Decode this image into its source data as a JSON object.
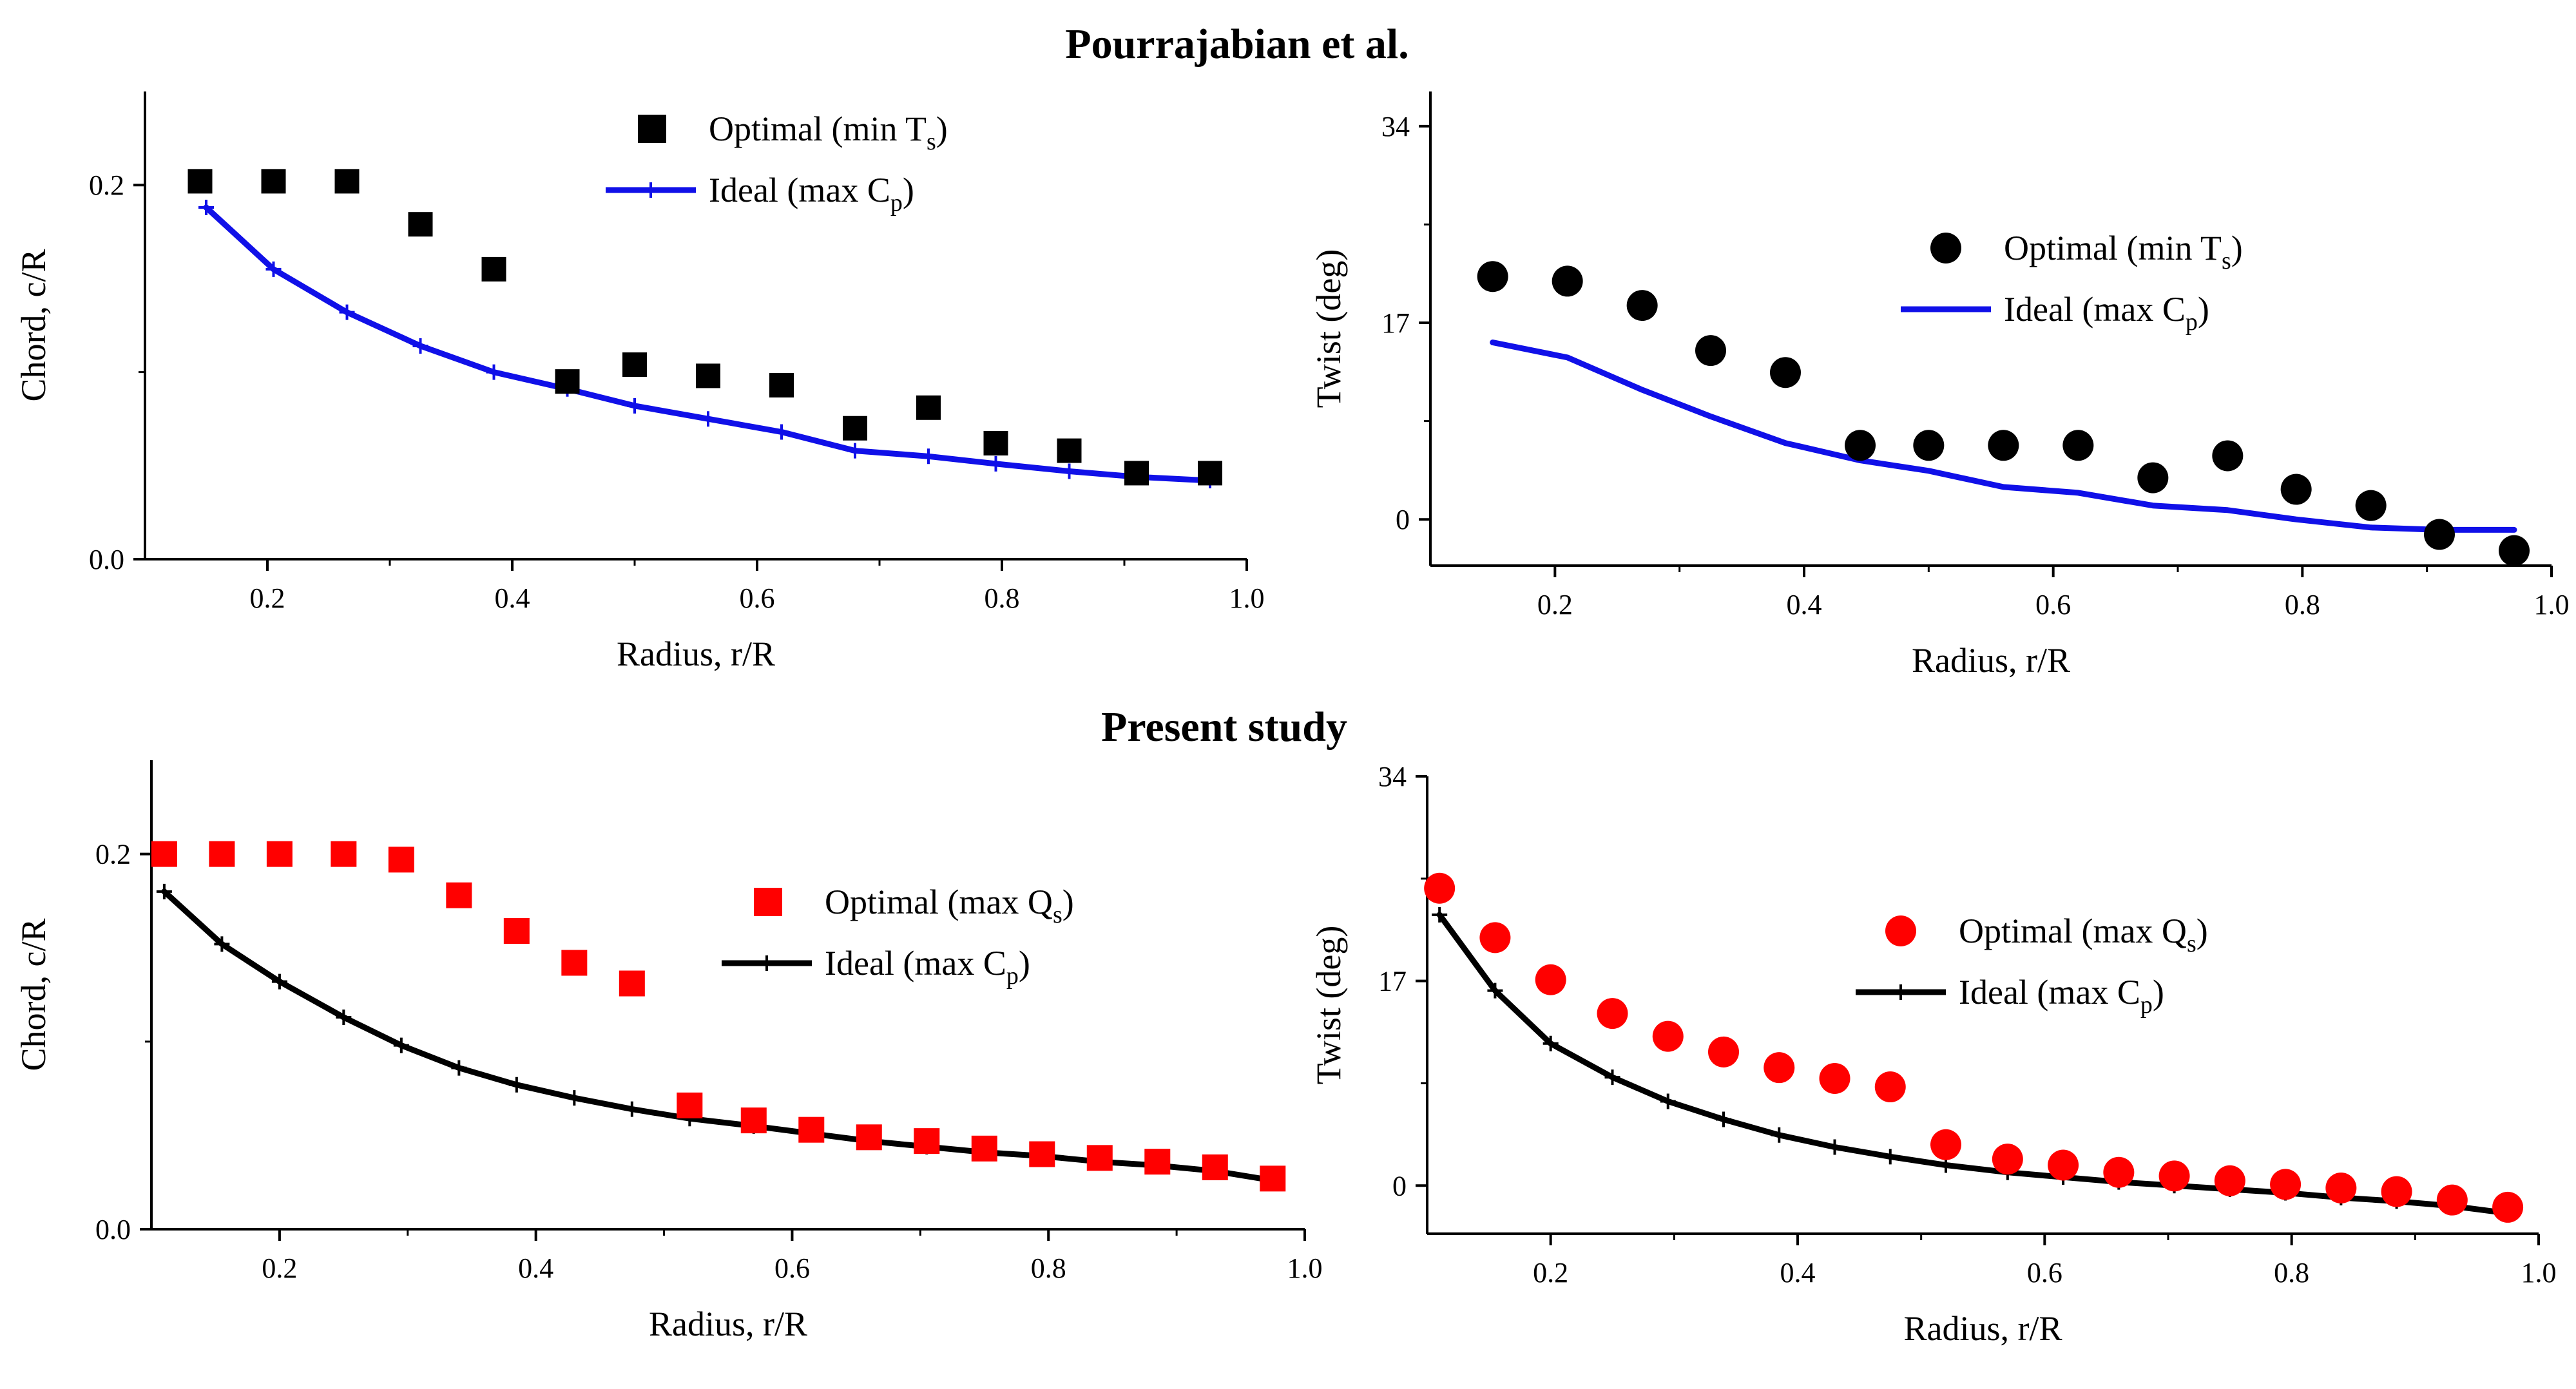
{
  "colors": {
    "black": "#000000",
    "blue": "#1010e8",
    "red": "#ff0000"
  },
  "section_titles": {
    "top": "Pourrajabian et al.",
    "bottom": "Present study"
  },
  "chart_data": [
    {
      "id": "tl",
      "type": "scatter+line",
      "title": "Pourrajabian et al.",
      "xlabel": "Radius, r/R",
      "ylabel": "Chord, c/R",
      "xlim": [
        0.1,
        1.0
      ],
      "ylim": [
        0.0,
        0.25
      ],
      "xticks": [
        0.2,
        0.4,
        0.6,
        0.8,
        1.0
      ],
      "xtick_labels": [
        "0.2",
        "0.4",
        "0.6",
        "0.8",
        "1.0"
      ],
      "yticks": [
        0.0,
        0.2
      ],
      "ytick_labels": [
        "0.0",
        "0.2"
      ],
      "legend_position": "top-right",
      "series": [
        {
          "name": "Optimal (min T",
          "sub": "s",
          "close": ")",
          "style": "square",
          "color": "#000000",
          "x": [
            0.145,
            0.205,
            0.265,
            0.325,
            0.385,
            0.445,
            0.5,
            0.56,
            0.62,
            0.68,
            0.74,
            0.795,
            0.855,
            0.91,
            0.97
          ],
          "y": [
            0.202,
            0.202,
            0.202,
            0.179,
            0.155,
            0.095,
            0.104,
            0.098,
            0.093,
            0.07,
            0.081,
            0.062,
            0.058,
            0.046,
            0.046
          ]
        },
        {
          "name": "Ideal (max C",
          "sub": "p",
          "close": ")",
          "style": "line-plus",
          "color": "#1010e8",
          "x": [
            0.15,
            0.205,
            0.265,
            0.325,
            0.385,
            0.445,
            0.5,
            0.56,
            0.62,
            0.68,
            0.74,
            0.795,
            0.855,
            0.91,
            0.97
          ],
          "y": [
            0.188,
            0.155,
            0.132,
            0.114,
            0.1,
            0.091,
            0.082,
            0.075,
            0.068,
            0.058,
            0.055,
            0.051,
            0.047,
            0.044,
            0.042
          ]
        }
      ]
    },
    {
      "id": "tr",
      "type": "scatter+line",
      "title": "Pourrajabian et al.",
      "xlabel": "Radius, r/R",
      "ylabel": "Twist (deg)",
      "xlim": [
        0.1,
        1.0
      ],
      "ylim": [
        -4,
        37
      ],
      "xticks": [
        0.2,
        0.4,
        0.6,
        0.8,
        1.0
      ],
      "xtick_labels": [
        "0.2",
        "0.4",
        "0.6",
        "0.8",
        "1.0"
      ],
      "yticks": [
        0,
        17,
        34
      ],
      "ytick_labels": [
        "0",
        "17",
        "34"
      ],
      "legend_position": "top-right",
      "series": [
        {
          "name": "Optimal (min T",
          "sub": "s",
          "close": ")",
          "style": "circle",
          "color": "#000000",
          "x": [
            0.15,
            0.21,
            0.27,
            0.325,
            0.385,
            0.445,
            0.5,
            0.56,
            0.62,
            0.68,
            0.74,
            0.795,
            0.855,
            0.91,
            0.97
          ],
          "y": [
            21,
            20.6,
            18.5,
            14.6,
            12.7,
            6.4,
            6.4,
            6.4,
            6.4,
            3.6,
            5.5,
            2.6,
            1.2,
            -1.3,
            -2.7
          ]
        },
        {
          "name": "Ideal (max C",
          "sub": "p",
          "close": ")",
          "style": "line",
          "color": "#1010e8",
          "x": [
            0.15,
            0.21,
            0.27,
            0.325,
            0.385,
            0.445,
            0.5,
            0.56,
            0.62,
            0.68,
            0.74,
            0.795,
            0.855,
            0.91,
            0.97
          ],
          "y": [
            15.3,
            14,
            11.2,
            8.9,
            6.6,
            5.1,
            4.2,
            2.8,
            2.3,
            1.2,
            0.8,
            0.0,
            -0.7,
            -0.9,
            -0.9
          ]
        }
      ]
    },
    {
      "id": "bl",
      "type": "scatter+line",
      "title": "Present study",
      "xlabel": "Radius, r/R",
      "ylabel": "Chord, c/R",
      "xlim": [
        0.1,
        1.0
      ],
      "ylim": [
        0.0,
        0.25
      ],
      "xticks": [
        0.2,
        0.4,
        0.6,
        0.8,
        1.0
      ],
      "xtick_labels": [
        "0.2",
        "0.4",
        "0.6",
        "0.8",
        "1.0"
      ],
      "yticks": [
        0.0,
        0.2
      ],
      "ytick_labels": [
        "0.0",
        "0.2"
      ],
      "legend_position": "right",
      "series": [
        {
          "name": "Optimal (max Q",
          "sub": "s",
          "close": ")",
          "style": "square",
          "color": "#ff0000",
          "x": [
            0.11,
            0.155,
            0.2,
            0.25,
            0.295,
            0.34,
            0.385,
            0.43,
            0.475,
            0.52,
            0.57,
            0.615,
            0.66,
            0.705,
            0.75,
            0.795,
            0.84,
            0.885,
            0.93,
            0.975
          ],
          "y": [
            0.2,
            0.2,
            0.2,
            0.2,
            0.197,
            0.178,
            0.159,
            0.142,
            0.131,
            0.066,
            0.058,
            0.053,
            0.049,
            0.047,
            0.043,
            0.04,
            0.038,
            0.036,
            0.033,
            0.027
          ]
        },
        {
          "name": "Ideal (max C",
          "sub": "p",
          "close": ")",
          "style": "line-plus",
          "color": "#000000",
          "x": [
            0.11,
            0.155,
            0.2,
            0.25,
            0.295,
            0.34,
            0.385,
            0.43,
            0.475,
            0.52,
            0.57,
            0.615,
            0.66,
            0.705,
            0.75,
            0.795,
            0.84,
            0.885,
            0.93,
            0.975
          ],
          "y": [
            0.18,
            0.152,
            0.132,
            0.113,
            0.098,
            0.086,
            0.077,
            0.07,
            0.064,
            0.059,
            0.055,
            0.051,
            0.047,
            0.044,
            0.041,
            0.039,
            0.036,
            0.034,
            0.031,
            0.026
          ]
        }
      ]
    },
    {
      "id": "br",
      "type": "scatter+line",
      "title": "Present study",
      "xlabel": "Radius, r/R",
      "ylabel": "Twist (deg)",
      "xlim": [
        0.1,
        1.0
      ],
      "ylim": [
        -4,
        34
      ],
      "xticks": [
        0.2,
        0.4,
        0.6,
        0.8,
        1.0
      ],
      "xtick_labels": [
        "0.2",
        "0.4",
        "0.6",
        "0.8",
        "1.0"
      ],
      "yticks": [
        0,
        17,
        34
      ],
      "ytick_labels": [
        "0",
        "17",
        "34"
      ],
      "legend_position": "right",
      "series": [
        {
          "name": "Optimal (max Q",
          "sub": "s",
          "close": ")",
          "style": "circle",
          "color": "#ff0000",
          "x": [
            0.11,
            0.155,
            0.2,
            0.25,
            0.295,
            0.34,
            0.385,
            0.43,
            0.475,
            0.52,
            0.57,
            0.615,
            0.66,
            0.705,
            0.75,
            0.795,
            0.84,
            0.885,
            0.93,
            0.975
          ],
          "y": [
            24.7,
            20.6,
            17.1,
            14.3,
            12.4,
            11.1,
            9.8,
            8.9,
            8.2,
            3.4,
            2.2,
            1.7,
            1.1,
            0.8,
            0.4,
            0.1,
            -0.2,
            -0.5,
            -1.2,
            -1.8
          ]
        },
        {
          "name": "Ideal (max C",
          "sub": "p",
          "close": ")",
          "style": "line-plus",
          "color": "#000000",
          "x": [
            0.11,
            0.155,
            0.2,
            0.25,
            0.295,
            0.34,
            0.385,
            0.43,
            0.475,
            0.52,
            0.57,
            0.615,
            0.66,
            0.705,
            0.75,
            0.795,
            0.84,
            0.885,
            0.93,
            0.975
          ],
          "y": [
            22.5,
            16.2,
            11.8,
            9,
            7,
            5.5,
            4.2,
            3.2,
            2.4,
            1.7,
            1.1,
            0.7,
            0.3,
            0,
            -0.3,
            -0.6,
            -1,
            -1.3,
            -1.7,
            -2.3
          ]
        }
      ]
    }
  ]
}
